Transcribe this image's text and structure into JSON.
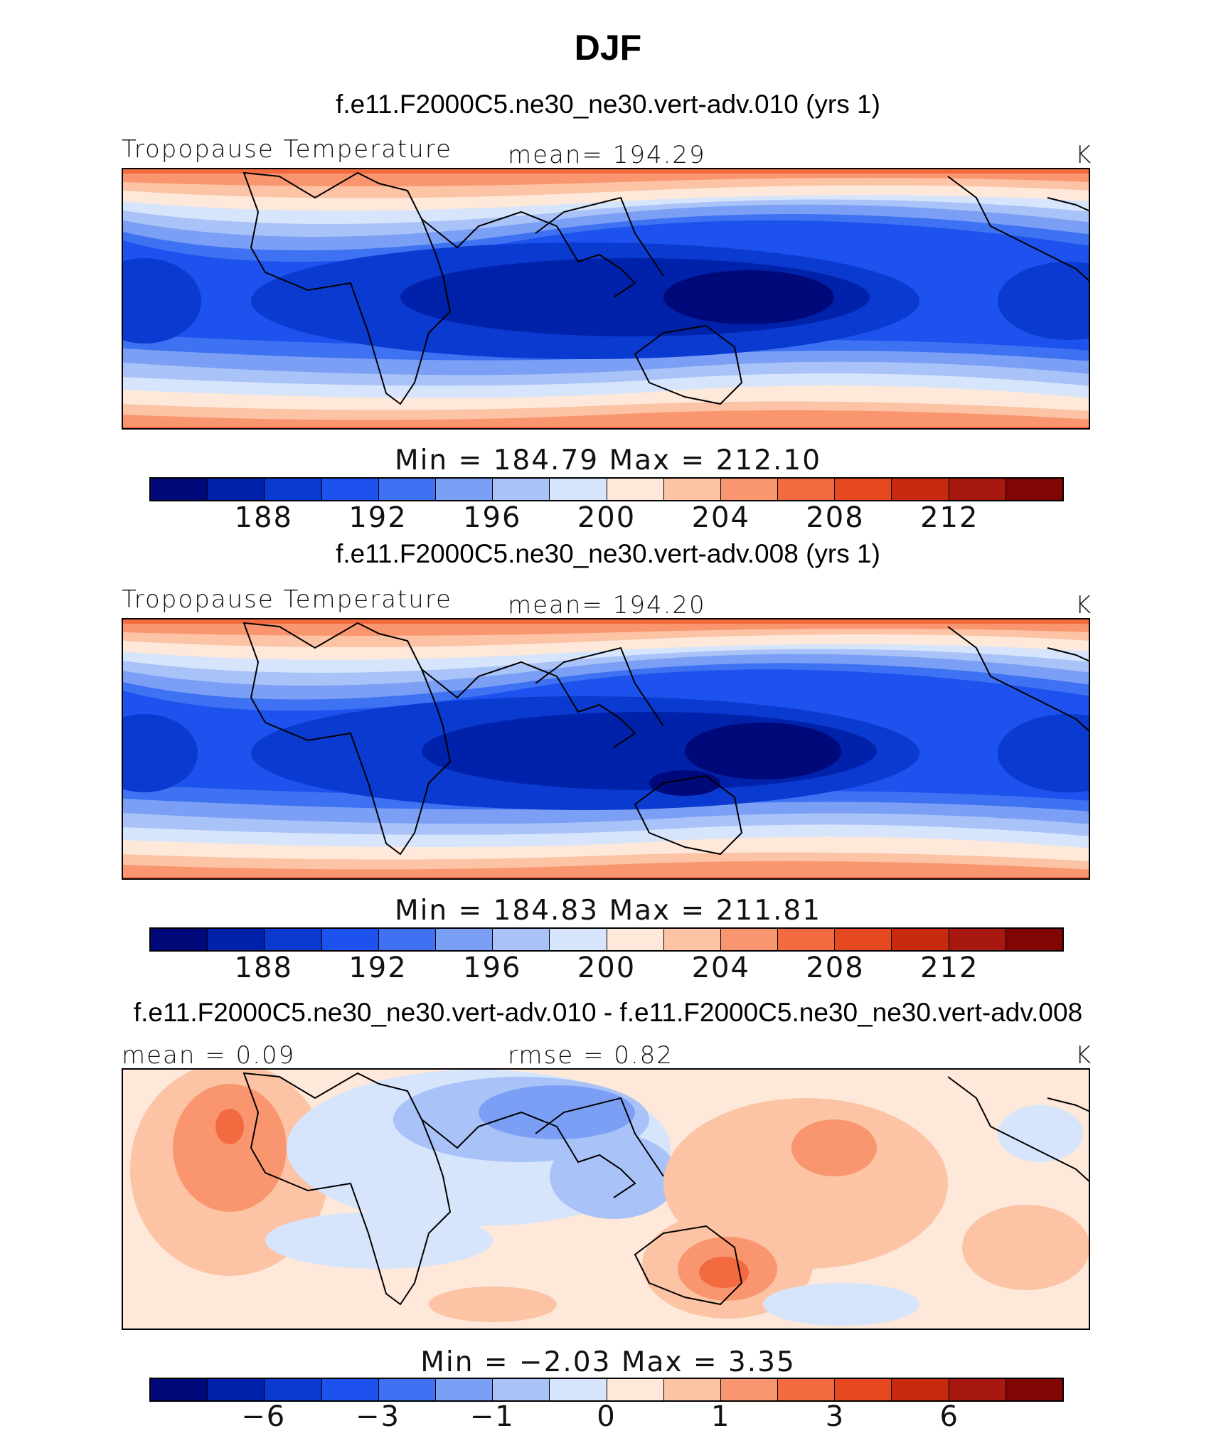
{
  "figure": {
    "title": "DJF"
  },
  "panels": [
    {
      "case_title": "f.e11.F2000C5.ne30_ne30.vert-adv.010 (yrs 1)",
      "left_label": "Tropopause Temperature",
      "center_label": "mean=  194.29",
      "units": "K",
      "stats": "Min  =  184.79  Max  =  212.10",
      "colorbar_ticks": [
        "188",
        "192",
        "196",
        "200",
        "204",
        "208",
        "212"
      ]
    },
    {
      "case_title": "f.e11.F2000C5.ne30_ne30.vert-adv.008 (yrs 1)",
      "left_label": "Tropopause Temperature",
      "center_label": "mean=  194.20",
      "units": "K",
      "stats": "Min  =  184.83  Max  =  211.81",
      "colorbar_ticks": [
        "188",
        "192",
        "196",
        "200",
        "204",
        "208",
        "212"
      ]
    },
    {
      "case_title": "f.e11.F2000C5.ne30_ne30.vert-adv.010 - f.e11.F2000C5.ne30_ne30.vert-adv.008",
      "left_label": "mean =    0.09",
      "center_label": "rmse =    0.82",
      "units": "K",
      "stats": "Min  =    −2.03  Max  =     3.35",
      "colorbar_ticks": [
        "−6",
        "−3",
        "−1",
        "0",
        "1",
        "3",
        "6"
      ]
    }
  ],
  "colorbar_colors": [
    "#00097a",
    "#0022aa",
    "#0a3ad0",
    "#1d52ee",
    "#3e72f2",
    "#7a9ff5",
    "#a9c2f8",
    "#d6e5fb",
    "#fde8da",
    "#fcc3a5",
    "#f9966f",
    "#f46a40",
    "#e64820",
    "#c82a10",
    "#a71810",
    "#820505"
  ],
  "chart_data": [
    {
      "type": "heatmap",
      "title": "f.e11.F2000C5.ne30_ne30.vert-adv.010 (yrs 1)",
      "variable": "Tropopause Temperature",
      "units": "K",
      "mean": 194.29,
      "min": 184.79,
      "max": 212.1,
      "contour_levels": [
        186,
        188,
        190,
        192,
        194,
        196,
        198,
        200,
        202,
        204,
        206,
        208,
        210,
        212,
        214
      ],
      "colorbar_tick_labels": [
        188,
        192,
        196,
        200,
        204,
        208,
        212
      ]
    },
    {
      "type": "heatmap",
      "title": "f.e11.F2000C5.ne30_ne30.vert-adv.008 (yrs 1)",
      "variable": "Tropopause Temperature",
      "units": "K",
      "mean": 194.2,
      "min": 184.83,
      "max": 211.81,
      "contour_levels": [
        186,
        188,
        190,
        192,
        194,
        196,
        198,
        200,
        202,
        204,
        206,
        208,
        210,
        212,
        214
      ],
      "colorbar_tick_labels": [
        188,
        192,
        196,
        200,
        204,
        208,
        212
      ]
    },
    {
      "type": "heatmap",
      "title": "f.e11.F2000C5.ne30_ne30.vert-adv.010 - f.e11.F2000C5.ne30_ne30.vert-adv.008",
      "variable": "difference",
      "units": "K",
      "mean": 0.09,
      "rmse": 0.82,
      "min": -2.03,
      "max": 3.35,
      "colorbar_tick_labels": [
        -6,
        -3,
        -1,
        0,
        1,
        3,
        6
      ]
    }
  ]
}
